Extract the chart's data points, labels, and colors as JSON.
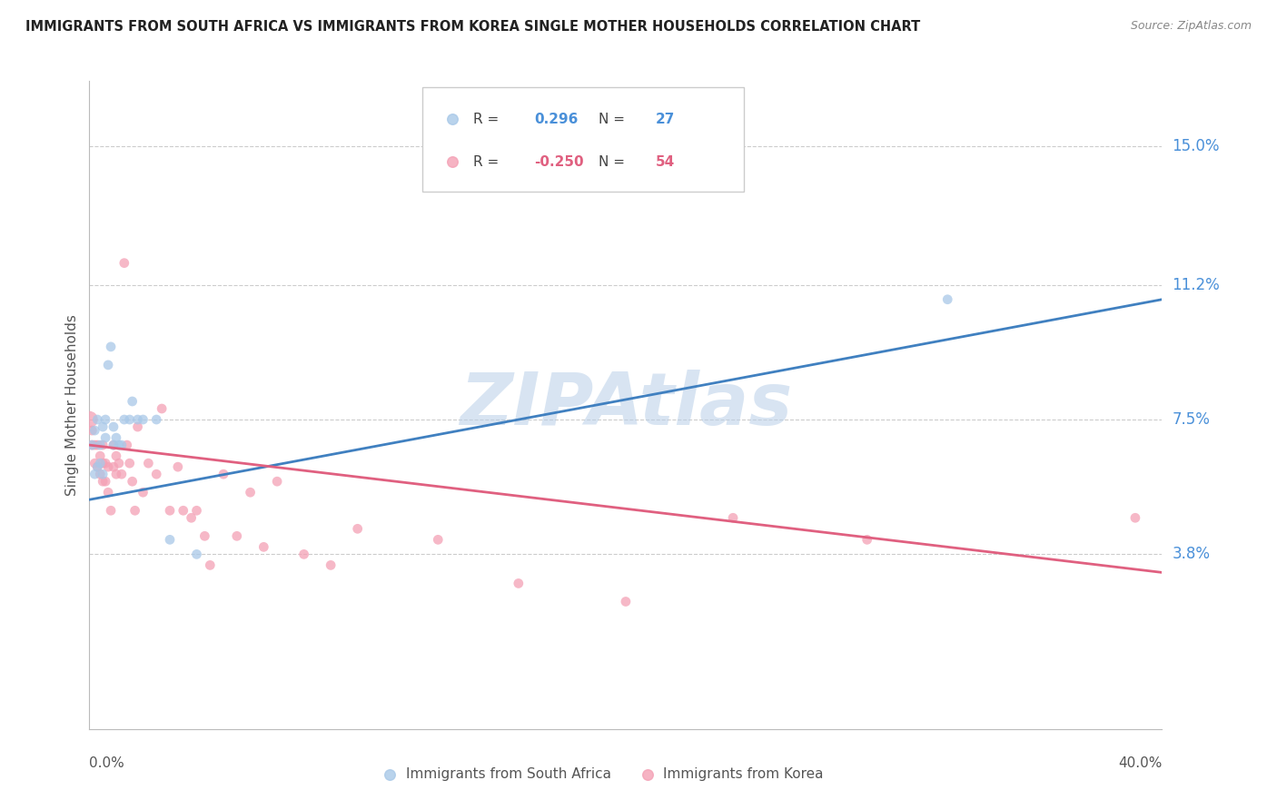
{
  "title": "IMMIGRANTS FROM SOUTH AFRICA VS IMMIGRANTS FROM KOREA SINGLE MOTHER HOUSEHOLDS CORRELATION CHART",
  "source": "Source: ZipAtlas.com",
  "ylabel": "Single Mother Households",
  "ytick_labels": [
    "15.0%",
    "11.2%",
    "7.5%",
    "3.8%"
  ],
  "ytick_values": [
    0.15,
    0.112,
    0.075,
    0.038
  ],
  "xlim": [
    0.0,
    0.4
  ],
  "ylim": [
    -0.01,
    0.168
  ],
  "color_blue": "#a8c8e8",
  "color_pink": "#f4a0b5",
  "color_blue_line": "#4080c0",
  "color_pink_line": "#e06080",
  "watermark": "ZIPAtlas",
  "sa_r": "0.296",
  "sa_n": "27",
  "ko_r": "-0.250",
  "ko_n": "54",
  "south_africa_x": [
    0.001,
    0.002,
    0.002,
    0.003,
    0.003,
    0.004,
    0.004,
    0.005,
    0.005,
    0.006,
    0.006,
    0.007,
    0.008,
    0.009,
    0.009,
    0.01,
    0.011,
    0.012,
    0.013,
    0.015,
    0.016,
    0.018,
    0.02,
    0.025,
    0.03,
    0.04,
    0.32
  ],
  "south_africa_y": [
    0.068,
    0.06,
    0.072,
    0.062,
    0.075,
    0.063,
    0.068,
    0.06,
    0.073,
    0.07,
    0.075,
    0.09,
    0.095,
    0.068,
    0.073,
    0.07,
    0.068,
    0.068,
    0.075,
    0.075,
    0.08,
    0.075,
    0.075,
    0.075,
    0.042,
    0.038,
    0.108
  ],
  "south_africa_sizes": [
    60,
    60,
    60,
    60,
    60,
    60,
    60,
    60,
    60,
    60,
    60,
    60,
    60,
    60,
    60,
    60,
    60,
    60,
    60,
    60,
    60,
    60,
    60,
    60,
    60,
    60,
    60
  ],
  "korea_x": [
    0.0,
    0.001,
    0.001,
    0.002,
    0.002,
    0.003,
    0.003,
    0.004,
    0.004,
    0.005,
    0.005,
    0.005,
    0.006,
    0.006,
    0.007,
    0.007,
    0.008,
    0.009,
    0.009,
    0.01,
    0.01,
    0.011,
    0.012,
    0.013,
    0.014,
    0.015,
    0.016,
    0.017,
    0.018,
    0.02,
    0.022,
    0.025,
    0.027,
    0.03,
    0.033,
    0.035,
    0.038,
    0.04,
    0.043,
    0.045,
    0.05,
    0.055,
    0.06,
    0.065,
    0.07,
    0.08,
    0.09,
    0.1,
    0.13,
    0.16,
    0.2,
    0.24,
    0.29,
    0.39
  ],
  "korea_y": [
    0.075,
    0.068,
    0.072,
    0.063,
    0.068,
    0.062,
    0.068,
    0.06,
    0.065,
    0.058,
    0.063,
    0.068,
    0.058,
    0.063,
    0.055,
    0.062,
    0.05,
    0.062,
    0.068,
    0.06,
    0.065,
    0.063,
    0.06,
    0.118,
    0.068,
    0.063,
    0.058,
    0.05,
    0.073,
    0.055,
    0.063,
    0.06,
    0.078,
    0.05,
    0.062,
    0.05,
    0.048,
    0.05,
    0.043,
    0.035,
    0.06,
    0.043,
    0.055,
    0.04,
    0.058,
    0.038,
    0.035,
    0.045,
    0.042,
    0.03,
    0.025,
    0.048,
    0.042,
    0.048
  ],
  "korea_sizes": [
    180,
    60,
    60,
    60,
    60,
    60,
    60,
    60,
    60,
    60,
    60,
    60,
    60,
    60,
    60,
    60,
    60,
    60,
    60,
    60,
    60,
    60,
    60,
    60,
    60,
    60,
    60,
    60,
    60,
    60,
    60,
    60,
    60,
    60,
    60,
    60,
    60,
    60,
    60,
    60,
    60,
    60,
    60,
    60,
    60,
    60,
    60,
    60,
    60,
    60,
    60,
    60,
    60,
    60
  ],
  "blue_line_x": [
    0.0,
    0.4
  ],
  "blue_line_y": [
    0.053,
    0.108
  ],
  "pink_line_x": [
    0.0,
    0.4
  ],
  "pink_line_y": [
    0.068,
    0.033
  ]
}
